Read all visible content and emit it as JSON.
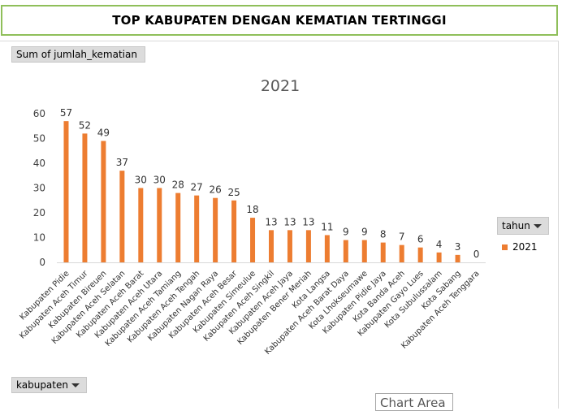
{
  "header": {
    "title": "TOP KABUPATEN DENGAN KEMATIAN TERTINGGI"
  },
  "field_buttons": {
    "values_field": "Sum of jumlah_kematian",
    "axis_field": "kabupaten",
    "legend_field": "tahun"
  },
  "tooltip": {
    "text": "Chart Area"
  },
  "colors": {
    "bar": "#ed7d31",
    "header_border": "#8fbf5a"
  },
  "chart_data": {
    "type": "bar",
    "title": "2021",
    "categories": [
      "Kabupaten Pidie",
      "Kabupaten Aceh Timur",
      "Kabupaten Bireuen",
      "Kabupaten Aceh Selatan",
      "Kabupaten Aceh Barat",
      "Kabupaten Aceh Utara",
      "Kabupaten Aceh Tamiang",
      "Kabupaten Aceh Tengah",
      "Kabupaten Nagan Raya",
      "Kabupaten Aceh Besar",
      "Kabupaten Simeulue",
      "Kabupaten Aceh Singkil",
      "Kabupaten Aceh Jaya",
      "Kabupaten Bener Meriah",
      "Kota Langsa",
      "Kabupaten Aceh Barat Daya",
      "Kota Lhokseumawe",
      "Kabupaten Pidie Jaya",
      "Kota Banda Aceh",
      "Kabupaten Gayo Lues",
      "Kota Subulussalam",
      "Kota Sabang",
      "Kabupaten Aceh Tenggara"
    ],
    "series": [
      {
        "name": "2021",
        "values": [
          57,
          52,
          49,
          37,
          30,
          30,
          28,
          27,
          26,
          25,
          18,
          13,
          13,
          13,
          11,
          9,
          9,
          8,
          7,
          6,
          4,
          3,
          0
        ]
      }
    ],
    "yticks": [
      "0",
      "10",
      "20",
      "30",
      "40",
      "50",
      "60"
    ],
    "ylim": [
      0,
      60
    ],
    "grid": false,
    "legend": "right"
  }
}
